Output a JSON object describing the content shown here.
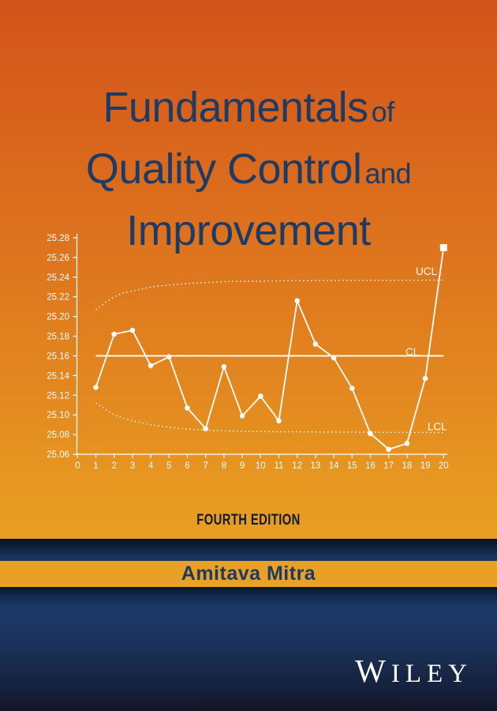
{
  "cover": {
    "title": {
      "line1_main": "Fundamentals",
      "line1_small": "of",
      "line2_main": "Quality Control",
      "line2_small": "and",
      "line3_main": "Improvement"
    },
    "edition": "FOURTH EDITION",
    "author": "Amitava Mitra",
    "publisher": "WILEY"
  },
  "colors": {
    "orange_top": "#d2531a",
    "orange_bottom": "#e89e22",
    "author_band_orange": "#e9a125",
    "navy_dark": "#0e1d36",
    "navy_panel": "#1b3560",
    "title_navy": "#1e3b64",
    "chart_white": "#ffffff"
  },
  "chart_data": {
    "type": "line",
    "title": "",
    "xlabel": "",
    "ylabel": "",
    "grid": false,
    "legend": false,
    "xlim": [
      0,
      20
    ],
    "ylim": [
      25.06,
      25.28
    ],
    "x_ticks": [
      0,
      1,
      2,
      3,
      4,
      5,
      6,
      7,
      8,
      9,
      10,
      11,
      12,
      13,
      14,
      15,
      16,
      17,
      18,
      19,
      20
    ],
    "y_ticks": [
      25.06,
      25.08,
      25.1,
      25.12,
      25.14,
      25.16,
      25.18,
      25.2,
      25.22,
      25.24,
      25.26,
      25.28
    ],
    "x": [
      1,
      2,
      3,
      4,
      5,
      6,
      7,
      8,
      9,
      10,
      11,
      12,
      13,
      14,
      15,
      16,
      17,
      18,
      19,
      20
    ],
    "values": [
      25.128,
      25.182,
      25.186,
      25.15,
      25.159,
      25.107,
      25.086,
      25.149,
      25.099,
      25.119,
      25.094,
      25.216,
      25.172,
      25.158,
      25.127,
      25.081,
      25.065,
      25.071,
      25.137,
      25.27
    ],
    "center_line": 25.16,
    "cl_span": [
      1,
      20
    ],
    "ucl_curve": [
      [
        1,
        25.207
      ],
      [
        1.5,
        25.214
      ],
      [
        2,
        25.22
      ],
      [
        2.5,
        25.224
      ],
      [
        3,
        25.226
      ],
      [
        4,
        25.23
      ],
      [
        5,
        25.232
      ],
      [
        6,
        25.2335
      ],
      [
        7,
        25.2345
      ],
      [
        8,
        25.2355
      ],
      [
        10,
        25.236
      ],
      [
        12,
        25.2365
      ],
      [
        20,
        25.237
      ]
    ],
    "lcl_curve": [
      [
        1,
        25.112
      ],
      [
        1.5,
        25.106
      ],
      [
        2,
        25.1
      ],
      [
        2.5,
        25.0965
      ],
      [
        3,
        25.094
      ],
      [
        4,
        25.09
      ],
      [
        5,
        25.0875
      ],
      [
        6,
        25.0855
      ],
      [
        7,
        25.0845
      ],
      [
        8,
        25.0838
      ],
      [
        10,
        25.083
      ],
      [
        12,
        25.0828
      ],
      [
        20,
        25.082
      ]
    ],
    "labels": {
      "ucl": "UCL",
      "cl": "CL",
      "lcl": "LCL"
    },
    "label_pos": {
      "ucl": [
        18.48,
        25.246
      ],
      "cl": [
        17.92,
        25.164
      ],
      "lcl": [
        19.12,
        25.088
      ]
    },
    "last_point_marker": "square"
  }
}
